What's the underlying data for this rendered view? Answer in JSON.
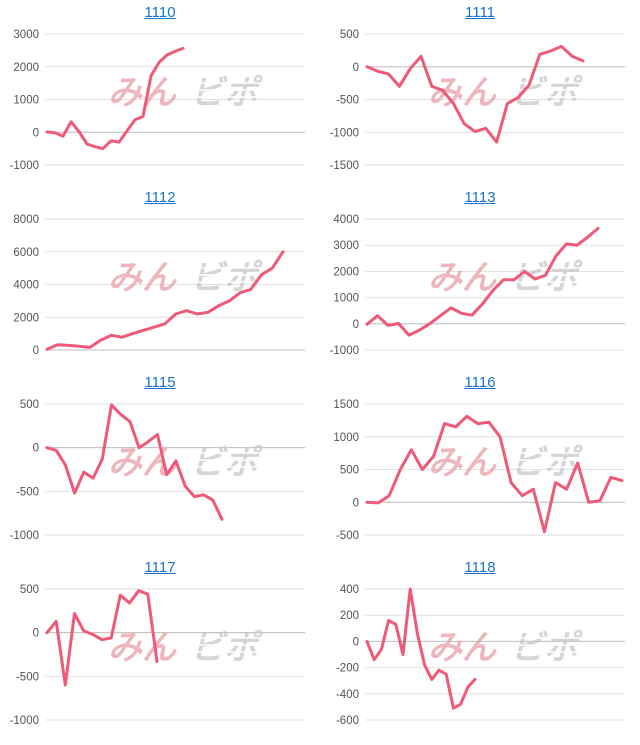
{
  "colors": {
    "line": "#ee5a78",
    "grid": "#e2e2e2",
    "axis": "#bdbdbd",
    "title": "#1a73c8",
    "watermark": "#e8a0a8"
  },
  "watermark": {
    "left": "みん",
    "right": "ビポ"
  },
  "chart_data": [
    {
      "type": "line",
      "title": "1110",
      "ylim": [
        -1000,
        3000
      ],
      "yticks": [
        3000,
        2000,
        1000,
        0,
        -1000
      ],
      "series": [
        {
          "values": [
            10,
            -20,
            -120,
            320,
            20,
            -360,
            -440,
            -500,
            -260,
            -300,
            40,
            380,
            480,
            1720,
            2130,
            2360,
            2470,
            2560
          ]
        }
      ]
    },
    {
      "type": "line",
      "title": "1111",
      "ylim": [
        -1500,
        500
      ],
      "yticks": [
        500,
        0,
        -500,
        -1000,
        -1500
      ],
      "series": [
        {
          "values": [
            0,
            -70,
            -110,
            -300,
            -30,
            160,
            -300,
            -360,
            -560,
            -870,
            -990,
            -940,
            -1150,
            -560,
            -470,
            -280,
            190,
            240,
            310,
            160,
            90
          ]
        }
      ]
    },
    {
      "type": "line",
      "title": "1112",
      "ylim": [
        0,
        8000
      ],
      "yticks": [
        8000,
        6000,
        4000,
        2000,
        0
      ],
      "series": [
        {
          "values": [
            50,
            320,
            280,
            230,
            160,
            600,
            900,
            780,
            1000,
            1200,
            1400,
            1600,
            2200,
            2400,
            2200,
            2300,
            2700,
            3000,
            3500,
            3700,
            4600,
            5000,
            6000
          ]
        }
      ]
    },
    {
      "type": "line",
      "title": "1113",
      "ylim": [
        -1000,
        4000
      ],
      "yticks": [
        4000,
        3000,
        2000,
        1000,
        0,
        -1000
      ],
      "series": [
        {
          "values": [
            -20,
            310,
            -60,
            10,
            -430,
            -240,
            10,
            310,
            610,
            400,
            330,
            760,
            1280,
            1680,
            1680,
            2000,
            1710,
            1850,
            2590,
            3050,
            3000,
            3300,
            3640
          ]
        }
      ]
    },
    {
      "type": "line",
      "title": "1115",
      "ylim": [
        -1000,
        500
      ],
      "yticks": [
        500,
        0,
        -500,
        -1000
      ],
      "series": [
        {
          "values": [
            0,
            -30,
            -200,
            -520,
            -280,
            -350,
            -130,
            490,
            380,
            300,
            0,
            70,
            150,
            -310,
            -150,
            -440,
            -560,
            -540,
            -600,
            -820
          ]
        }
      ]
    },
    {
      "type": "line",
      "title": "1116",
      "ylim": [
        -500,
        1500
      ],
      "yticks": [
        1500,
        1000,
        500,
        0,
        -500
      ],
      "series": [
        {
          "values": [
            0,
            -10,
            100,
            500,
            800,
            500,
            700,
            1200,
            1150,
            1310,
            1200,
            1220,
            1000,
            300,
            100,
            200,
            -450,
            300,
            200,
            600,
            0,
            20,
            380,
            330
          ]
        }
      ]
    },
    {
      "type": "line",
      "title": "1117",
      "ylim": [
        -1000,
        500
      ],
      "yticks": [
        500,
        0,
        -500,
        -1000
      ],
      "series": [
        {
          "values": [
            0,
            130,
            -600,
            220,
            20,
            -20,
            -80,
            -60,
            430,
            340,
            480,
            440,
            -330
          ]
        }
      ]
    },
    {
      "type": "line",
      "title": "1118",
      "ylim": [
        -600,
        400
      ],
      "yticks": [
        400,
        200,
        0,
        -200,
        -400,
        -600
      ],
      "series": [
        {
          "values": [
            0,
            -140,
            -60,
            160,
            130,
            -100,
            400,
            60,
            -180,
            -290,
            -220,
            -250,
            -510,
            -480,
            -350,
            -290
          ]
        }
      ]
    }
  ]
}
